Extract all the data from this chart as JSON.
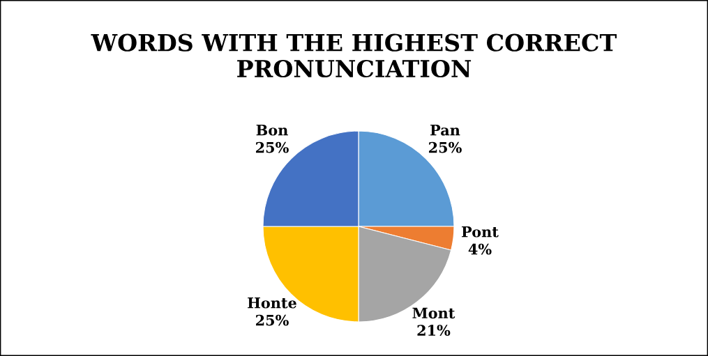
{
  "chart_data": {
    "type": "pie",
    "title": "WORDS WITH THE HIGHEST CORRECT PRONUNCIATION",
    "categories": [
      "Pan",
      "Pont",
      "Mont",
      "Honte",
      "Bon"
    ],
    "values": [
      25,
      4,
      21,
      25,
      25
    ],
    "colors": [
      "#5b9bd5",
      "#ed7d31",
      "#a5a5a5",
      "#ffc000",
      "#4472c4"
    ],
    "value_labels": [
      "25%",
      "4%",
      "21%",
      "25%",
      "25%"
    ],
    "legend": false
  }
}
